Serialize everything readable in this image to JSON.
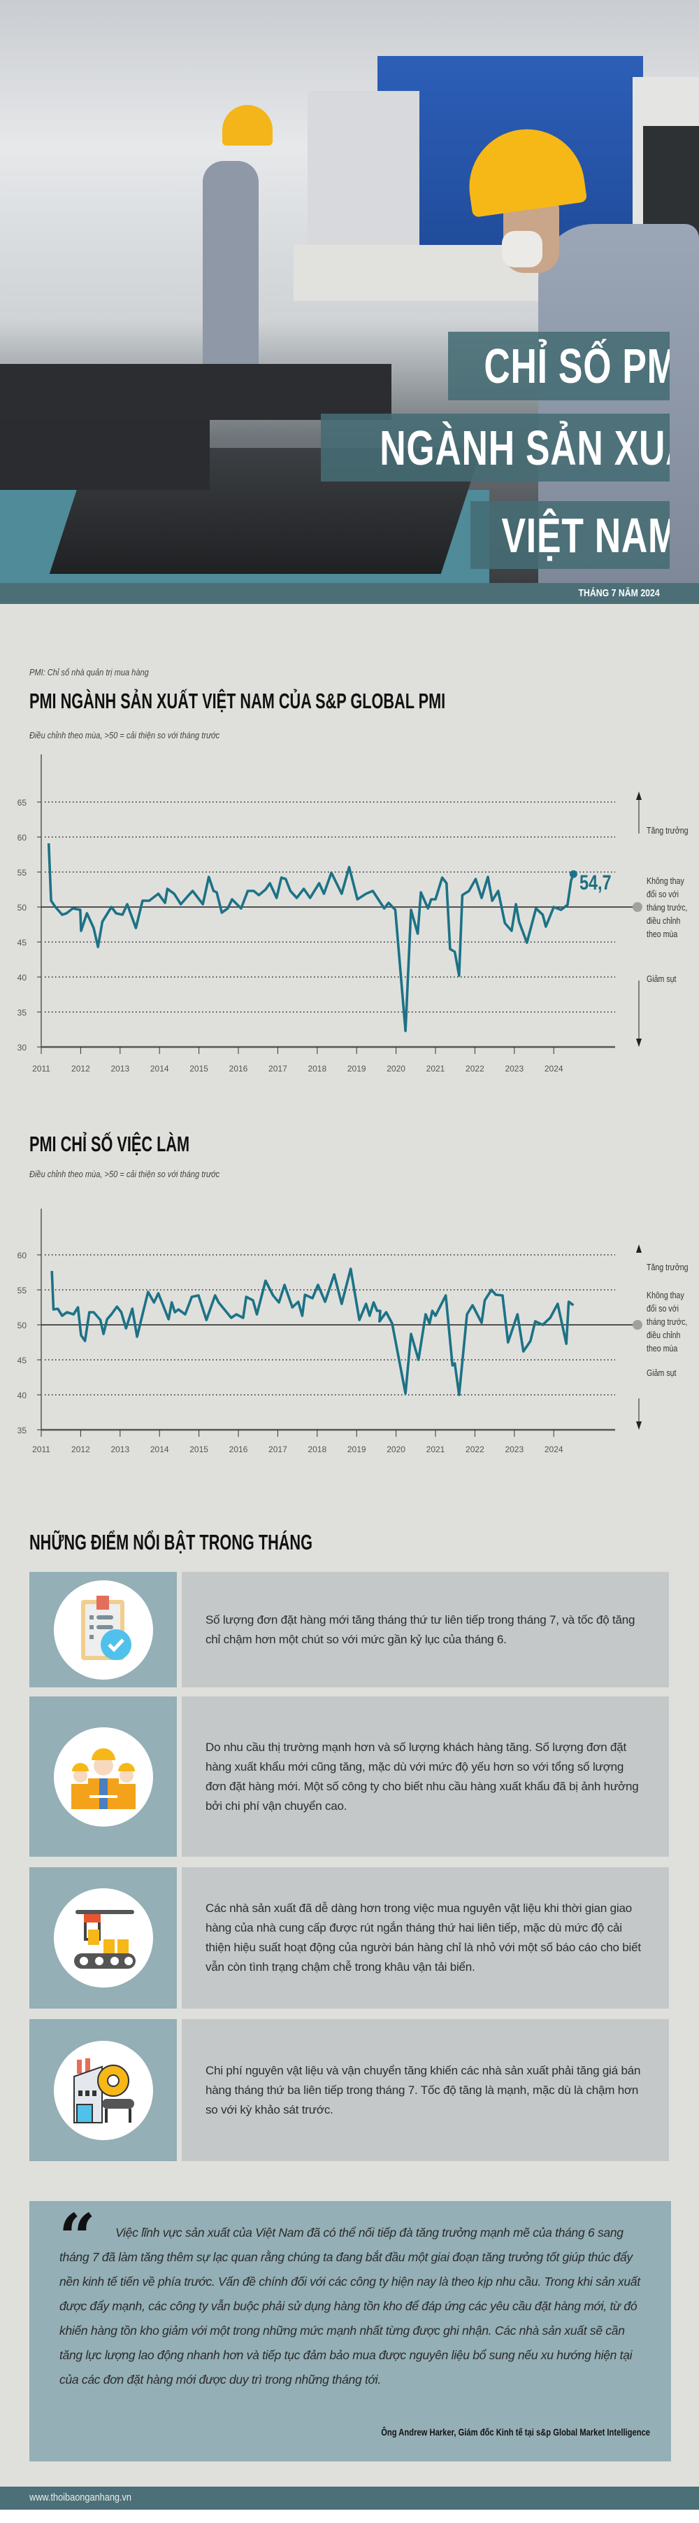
{
  "header": {
    "title_lines": [
      "CHỈ SỐ PMI",
      "NGÀNH SẢN XUẤT",
      "VIỆT NAM"
    ],
    "date": "THÁNG 7 NĂM 2024",
    "photo_description_icon": "factory-workers-photo"
  },
  "colors": {
    "teal_dark": "#4c6f77",
    "line": "#1d7286",
    "background": "#dfe0dc",
    "icon_panel": "#94afb6",
    "text_panel": "#c4c8c8"
  },
  "pmi_note": "PMI: Chỉ số nhà quản trị mua hàng",
  "annotations": {
    "growth": "Tăng trưởng",
    "no_change": [
      "Không thay",
      "đổi so với",
      "tháng trước,",
      "điều chỉnh",
      "theo mùa"
    ],
    "decline": "Giảm sụt"
  },
  "chart_data": [
    {
      "type": "line",
      "title": "PMI NGÀNH SẢN XUẤT VIỆT NAM CỦA S&P GLOBAL PMI",
      "subtitle": "Điều chỉnh theo mùa, >50 = cải thiện so với tháng trước",
      "xlabel": "",
      "ylabel": "",
      "ylim": [
        30,
        65
      ],
      "yticks": [
        "30",
        "35",
        "40",
        "45",
        "50",
        "55",
        "60",
        "65"
      ],
      "xticks": [
        "2011",
        "2012",
        "2013",
        "2014",
        "2015",
        "2016",
        "2017",
        "2018",
        "2019",
        "2020",
        "2021",
        "2022",
        "2023",
        "2024"
      ],
      "grid": "dotted horizontal",
      "reference_line": 50,
      "last_value_label": "54,7",
      "x": [
        2011.19,
        2011.25,
        2011.36,
        2011.53,
        2011.64,
        2011.8,
        2011.99,
        2012.01,
        2012.16,
        2012.33,
        2012.44,
        2012.55,
        2012.78,
        2012.9,
        2013.06,
        2013.18,
        2013.4,
        2013.57,
        2013.74,
        2013.97,
        2014.14,
        2014.2,
        2014.37,
        2014.54,
        2014.71,
        2014.84,
        2015.1,
        2015.25,
        2015.37,
        2015.45,
        2015.58,
        2015.73,
        2015.84,
        2016.07,
        2016.24,
        2016.39,
        2016.52,
        2016.69,
        2016.8,
        2016.97,
        2017.09,
        2017.2,
        2017.32,
        2017.48,
        2017.66,
        2017.82,
        2018.05,
        2018.17,
        2018.36,
        2018.62,
        2018.81,
        2019.02,
        2019.24,
        2019.41,
        2019.7,
        2019.81,
        2019.98,
        2020.24,
        2020.38,
        2020.55,
        2020.63,
        2020.81,
        2020.89,
        2021.0,
        2021.17,
        2021.28,
        2021.37,
        2021.49,
        2021.6,
        2021.68,
        2021.85,
        2022.02,
        2022.17,
        2022.33,
        2022.44,
        2022.59,
        2022.76,
        2022.93,
        2023.04,
        2023.12,
        2023.32,
        2023.55,
        2023.72,
        2023.8,
        2024.0,
        2024.18,
        2024.35,
        2024.44,
        2024.5
      ],
      "series": [
        {
          "values": [
            59.1,
            50.9,
            50.0,
            48.9,
            49.1,
            49.8,
            49.6,
            46.6,
            49.1,
            47.0,
            44.3,
            47.9,
            50.0,
            49.1,
            48.9,
            50.4,
            47.0,
            50.9,
            50.9,
            51.9,
            50.6,
            52.6,
            51.9,
            50.4,
            51.5,
            52.3,
            50.4,
            54.3,
            52.3,
            52.1,
            49.2,
            49.8,
            51.1,
            49.8,
            52.3,
            52.3,
            51.7,
            52.5,
            53.4,
            51.3,
            54.2,
            54.0,
            52.3,
            51.3,
            52.6,
            51.3,
            53.4,
            51.9,
            54.9,
            51.9,
            55.7,
            51.1,
            51.9,
            52.3,
            49.8,
            50.6,
            49.6,
            32.3,
            49.6,
            46.2,
            52.1,
            49.8,
            51.1,
            51.1,
            54.2,
            53.4,
            44.0,
            43.6,
            40.2,
            51.7,
            52.3,
            54.0,
            51.3,
            54.3,
            50.9,
            52.3,
            47.7,
            46.6,
            50.4,
            47.9,
            44.9,
            49.8,
            48.9,
            47.2,
            50.0,
            49.6,
            50.3,
            53.8,
            54.7
          ]
        }
      ]
    },
    {
      "type": "line",
      "title": "PMI CHỈ SỐ VIỆC LÀM",
      "subtitle": "Điều chỉnh theo mùa, >50 = cải thiện so với tháng trước",
      "xlabel": "",
      "ylabel": "",
      "ylim": [
        35,
        60
      ],
      "yticks": [
        "35",
        "40",
        "45",
        "50",
        "55",
        "60"
      ],
      "xticks": [
        "2011",
        "2012",
        "2013",
        "2014",
        "2015",
        "2016",
        "2017",
        "2018",
        "2019",
        "2020",
        "2021",
        "2022",
        "2023",
        "2024"
      ],
      "grid": "dotted horizontal",
      "reference_line": 50,
      "x": [
        2011.27,
        2011.31,
        2011.42,
        2011.53,
        2011.65,
        2011.82,
        2011.93,
        2012.01,
        2012.11,
        2012.22,
        2012.33,
        2012.5,
        2012.58,
        2012.67,
        2012.78,
        2012.92,
        2013.03,
        2013.15,
        2013.31,
        2013.43,
        2013.57,
        2013.71,
        2013.86,
        2013.97,
        2014.23,
        2014.31,
        2014.39,
        2014.48,
        2014.65,
        2014.82,
        2014.99,
        2015.19,
        2015.41,
        2015.5,
        2015.82,
        2015.95,
        2016.12,
        2016.2,
        2016.37,
        2016.47,
        2016.69,
        2016.88,
        2017.03,
        2017.17,
        2017.37,
        2017.52,
        2017.62,
        2017.69,
        2017.88,
        2018.02,
        2018.2,
        2018.43,
        2018.62,
        2018.85,
        2019.07,
        2019.24,
        2019.33,
        2019.43,
        2019.52,
        2019.6,
        2019.58,
        2019.75,
        2019.9,
        2020.24,
        2020.38,
        2020.57,
        2020.75,
        2020.85,
        2020.92,
        2021.0,
        2021.26,
        2021.43,
        2021.49,
        2021.6,
        2021.8,
        2021.94,
        2022.17,
        2022.25,
        2022.42,
        2022.53,
        2022.7,
        2022.84,
        2023.08,
        2023.23,
        2023.41,
        2023.53,
        2023.72,
        2023.91,
        2024.1,
        2024.32,
        2024.38,
        2024.5
      ],
      "series": [
        {
          "values": [
            57.7,
            52.2,
            52.3,
            51.3,
            51.8,
            51.5,
            52.5,
            48.5,
            47.7,
            51.8,
            51.8,
            50.7,
            48.7,
            50.8,
            51.5,
            52.6,
            51.8,
            49.5,
            52.3,
            48.3,
            51.5,
            54.7,
            53.2,
            54.5,
            50.8,
            53.2,
            51.8,
            52.2,
            51.5,
            54.0,
            54.2,
            50.7,
            54.2,
            53.2,
            51.0,
            51.5,
            51.0,
            54.0,
            53.5,
            51.5,
            56.3,
            54.2,
            53.2,
            55.7,
            52.5,
            53.3,
            51.3,
            54.3,
            53.8,
            55.7,
            53.3,
            57.2,
            53.0,
            58.0,
            50.7,
            53.0,
            51.3,
            53.2,
            52.0,
            52.0,
            50.5,
            51.8,
            50.2,
            40.2,
            48.7,
            45.0,
            51.5,
            50.2,
            52.0,
            51.3,
            54.2,
            44.2,
            44.5,
            40.0,
            51.5,
            52.8,
            50.3,
            53.5,
            55.0,
            54.3,
            54.2,
            47.5,
            51.5,
            46.2,
            47.7,
            50.5,
            50.0,
            51.0,
            53.0,
            47.3,
            53.3,
            52.8
          ]
        }
      ]
    }
  ],
  "highlights": {
    "title": "NHỮNG ĐIỂM NỔI BẬT TRONG THÁNG",
    "items": [
      {
        "icon": "clipboard-check-icon",
        "text": "Số lượng đơn đặt hàng mới tăng tháng thứ tư liên tiếp trong tháng 7, và tốc độ tăng chỉ chậm hơn một chút so với mức gần kỷ lục của tháng 6."
      },
      {
        "icon": "workers-icon",
        "text": "Do nhu cầu thị trường mạnh hơn và số lượng khách hàng tăng. Số lượng đơn đặt hàng xuất khẩu mới cũng tăng, mặc dù với mức độ yếu hơn so với tổng số lượng đơn đặt hàng mới. Một số công ty cho biết nhu cầu hàng xuất khẩu đã bị ảnh hưởng bởi chi phí vận chuyển cao."
      },
      {
        "icon": "conveyor-icon",
        "text": "Các nhà sản xuất đã dễ dàng hơn trong việc mua nguyên vật liệu khi thời gian giao hàng của nhà cung cấp được rút ngắn tháng thứ hai liên tiếp, mặc dù mức độ cải thiện hiệu suất hoạt động của người bán hàng chỉ là nhỏ với một số báo cáo cho biết vẫn còn tình trạng chậm chễ trong khâu vận tải biển."
      },
      {
        "icon": "factory-icon",
        "text": "Chi phí nguyên vật liệu và vận chuyển tăng khiến các nhà sản xuất phải tăng giá bán hàng tháng thứ ba liên tiếp trong tháng 7. Tốc độ tăng là mạnh, mặc dù là chậm hơn so với kỳ khảo sát trước."
      }
    ]
  },
  "quote": {
    "text": "Việc lĩnh vực sản xuất của Việt Nam đã có thể nối tiếp đà tăng trưởng mạnh mẽ của tháng 6 sang tháng 7 đã làm tăng thêm sự lạc quan rằng chúng ta đang bắt đầu một giai đoạn tăng trưởng tốt giúp thúc đẩy nền kinh tế tiến về phía trước. Vấn đề chính đối với các công ty hiện nay là theo kịp nhu cầu. Trong khi sản xuất được đẩy mạnh, các công ty vẫn buộc phải sử dụng hàng tồn kho để đáp ứng các yêu cầu đặt hàng mới, từ đó khiến hàng tồn kho giảm với một trong những mức mạnh nhất từng được ghi nhận. Các nhà sản xuất sẽ cần tăng lực lượng lao động nhanh hơn và tiếp tục đảm bảo mua được nguyên liệu bổ sung nếu xu hướng hiện tại của các đơn đặt hàng mới được duy trì trong những tháng tới.",
    "author": "Ông Andrew Harker, Giám đốc Kinh tế tại s&p Global Market Intelligence",
    "icon": "quote-mark-icon"
  },
  "footer": {
    "url": "www.thoibaonganhang.vn"
  }
}
